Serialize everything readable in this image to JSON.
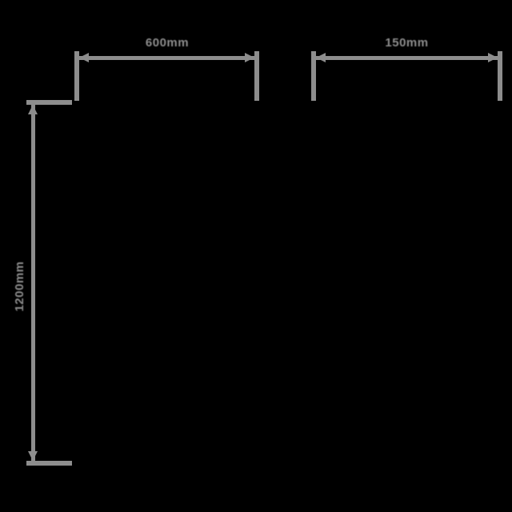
{
  "diagram": {
    "kind": "product-dimension-diagram",
    "colors": {
      "background": "#000000",
      "line": "#8d8d8d",
      "text": "#8d8d8d"
    },
    "units": "mm",
    "dimensions": {
      "front_width": {
        "label": "600mm",
        "orientation": "horizontal",
        "position": "top-left"
      },
      "side_depth": {
        "label": "150mm",
        "orientation": "horizontal",
        "position": "top-right"
      },
      "front_height": {
        "label": "1200mm",
        "orientation": "vertical",
        "position": "left"
      }
    }
  }
}
